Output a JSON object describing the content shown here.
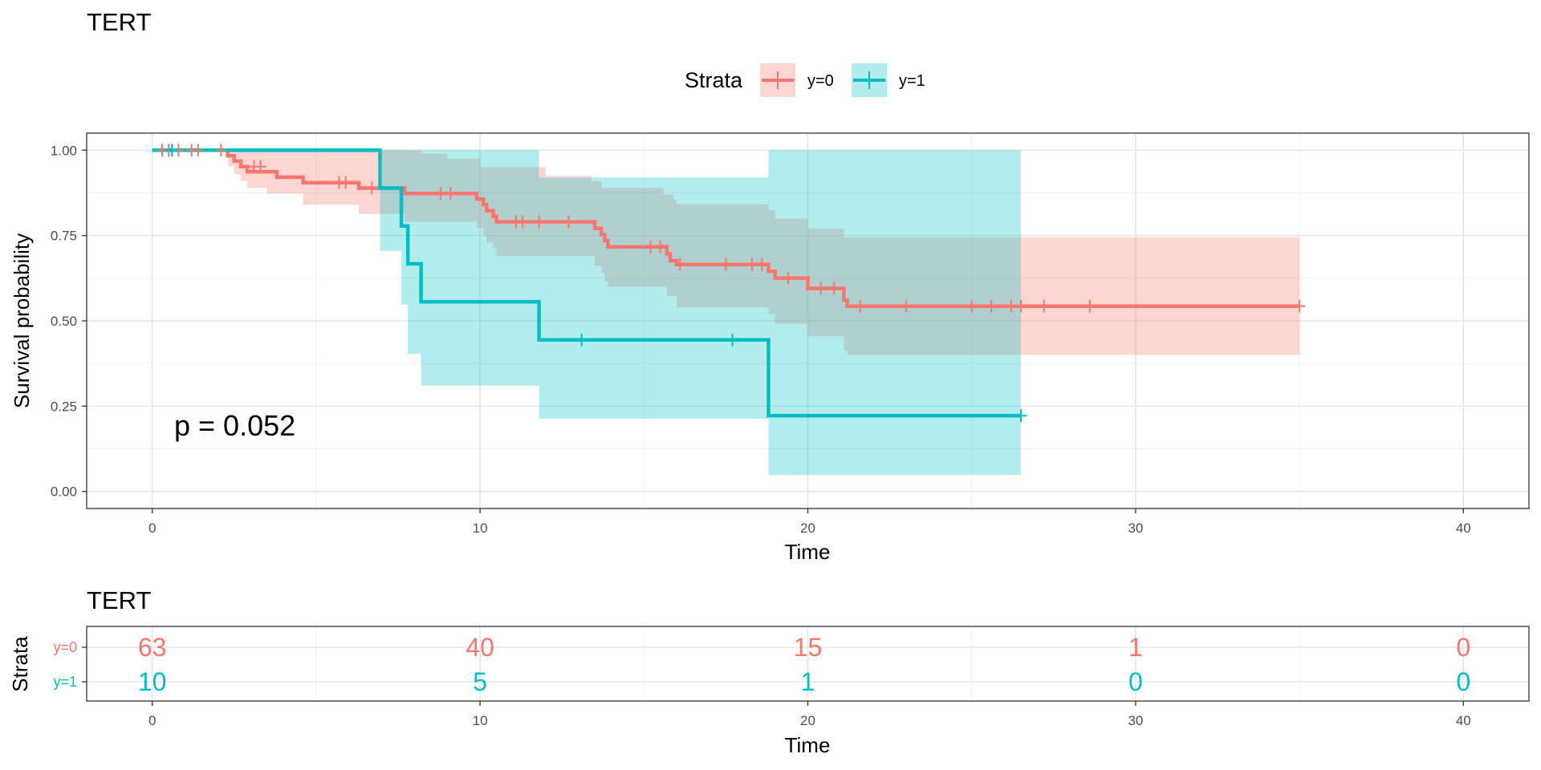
{
  "chart_data": [
    {
      "type": "line",
      "subtype": "kaplan-meier survival curve",
      "title": "TERT",
      "xlabel": "Time",
      "ylabel": "Survival probability",
      "xlim": [
        -2,
        42
      ],
      "ylim": [
        -0.05,
        1.05
      ],
      "x_ticks": [
        0,
        10,
        20,
        30,
        40
      ],
      "x_tick_labels": [
        "0",
        "10",
        "20",
        "30",
        "40"
      ],
      "y_ticks": [
        0,
        0.25,
        0.5,
        0.75,
        1.0
      ],
      "y_tick_labels": [
        "0.00",
        "0.25",
        "0.50",
        "0.75",
        "1.00"
      ],
      "grid": true,
      "legend": {
        "title": "Strata",
        "position": "top"
      },
      "annotation": "p = 0.052",
      "series": [
        {
          "name": "y=0",
          "color": "#F8766D",
          "steps": [
            [
              0,
              1.0
            ],
            [
              2.3,
              0.984
            ],
            [
              2.5,
              0.968
            ],
            [
              2.7,
              0.952
            ],
            [
              2.9,
              0.937
            ],
            [
              3.8,
              0.921
            ],
            [
              4.6,
              0.905
            ],
            [
              6.3,
              0.889
            ],
            [
              7.7,
              0.873
            ],
            [
              9.9,
              0.857
            ],
            [
              10.1,
              0.84
            ],
            [
              10.2,
              0.823
            ],
            [
              10.4,
              0.806
            ],
            [
              10.5,
              0.79
            ],
            [
              13.5,
              0.771
            ],
            [
              13.7,
              0.753
            ],
            [
              13.8,
              0.735
            ],
            [
              13.9,
              0.717
            ],
            [
              15.7,
              0.696
            ],
            [
              15.8,
              0.676
            ],
            [
              16.0,
              0.665
            ],
            [
              18.8,
              0.645
            ],
            [
              19.0,
              0.625
            ],
            [
              20.0,
              0.595
            ],
            [
              21.1,
              0.56
            ],
            [
              21.2,
              0.543
            ],
            [
              35.0,
              0.543
            ]
          ],
          "lower": [
            [
              0,
              1.0
            ],
            [
              2.3,
              0.953
            ],
            [
              2.5,
              0.93
            ],
            [
              2.7,
              0.91
            ],
            [
              2.9,
              0.89
            ],
            [
              3.5,
              0.873
            ],
            [
              4.6,
              0.84
            ],
            [
              6.3,
              0.813
            ],
            [
              7.7,
              0.79
            ],
            [
              9.9,
              0.773
            ],
            [
              10.1,
              0.751
            ],
            [
              10.2,
              0.73
            ],
            [
              10.4,
              0.712
            ],
            [
              10.5,
              0.69
            ],
            [
              13.5,
              0.662
            ],
            [
              13.7,
              0.64
            ],
            [
              13.8,
              0.615
            ],
            [
              13.9,
              0.6
            ],
            [
              15.7,
              0.573
            ],
            [
              16.0,
              0.54
            ],
            [
              18.8,
              0.52
            ],
            [
              19.0,
              0.491
            ],
            [
              20.0,
              0.455
            ],
            [
              21.1,
              0.413
            ],
            [
              21.2,
              0.4
            ],
            [
              35.0,
              0.4
            ]
          ],
          "upper": [
            [
              0,
              1.0
            ],
            [
              6.9,
              1.0
            ],
            [
              7.7,
              1.0
            ],
            [
              8.2,
              0.99
            ],
            [
              9.0,
              0.975
            ],
            [
              10.0,
              0.95
            ],
            [
              12.0,
              0.925
            ],
            [
              13.4,
              0.91
            ],
            [
              13.7,
              0.89
            ],
            [
              15.6,
              0.87
            ],
            [
              15.9,
              0.855
            ],
            [
              16.0,
              0.842
            ],
            [
              18.8,
              0.825
            ],
            [
              19.0,
              0.8
            ],
            [
              20.0,
              0.77
            ],
            [
              21.1,
              0.745
            ],
            [
              35.0,
              0.745
            ]
          ],
          "censored": [
            [
              0.3,
              1.0
            ],
            [
              0.5,
              1.0
            ],
            [
              0.8,
              1.0
            ],
            [
              1.2,
              1.0
            ],
            [
              1.4,
              1.0
            ],
            [
              2.1,
              1.0
            ],
            [
              3.1,
              0.952
            ],
            [
              3.3,
              0.952
            ],
            [
              5.7,
              0.905
            ],
            [
              5.9,
              0.905
            ],
            [
              6.7,
              0.889
            ],
            [
              8.8,
              0.873
            ],
            [
              9.1,
              0.873
            ],
            [
              11.1,
              0.79
            ],
            [
              11.3,
              0.79
            ],
            [
              11.8,
              0.79
            ],
            [
              12.7,
              0.79
            ],
            [
              15.2,
              0.717
            ],
            [
              15.5,
              0.717
            ],
            [
              16.1,
              0.665
            ],
            [
              17.5,
              0.665
            ],
            [
              18.3,
              0.665
            ],
            [
              18.6,
              0.665
            ],
            [
              19.4,
              0.625
            ],
            [
              20.4,
              0.595
            ],
            [
              20.8,
              0.595
            ],
            [
              21.6,
              0.543
            ],
            [
              23.0,
              0.543
            ],
            [
              25.0,
              0.543
            ],
            [
              25.6,
              0.543
            ],
            [
              26.2,
              0.543
            ],
            [
              26.5,
              0.543
            ],
            [
              27.2,
              0.543
            ],
            [
              28.6,
              0.543
            ],
            [
              35.0,
              0.543
            ]
          ]
        },
        {
          "name": "y=1",
          "color": "#00BFC4",
          "steps": [
            [
              0,
              1.0
            ],
            [
              6.95,
              0.889
            ],
            [
              7.6,
              0.778
            ],
            [
              7.8,
              0.667
            ],
            [
              8.2,
              0.556
            ],
            [
              11.8,
              0.444
            ],
            [
              18.8,
              0.222
            ],
            [
              26.5,
              0.222
            ]
          ],
          "lower": [
            [
              0,
              1.0
            ],
            [
              6.95,
              0.705
            ],
            [
              7.6,
              0.548
            ],
            [
              7.8,
              0.403
            ],
            [
              8.2,
              0.31
            ],
            [
              11.8,
              0.213
            ],
            [
              18.8,
              0.048
            ],
            [
              26.5,
              0.048
            ]
          ],
          "upper": [
            [
              0,
              1.0
            ],
            [
              11.8,
              1.0
            ],
            [
              11.8,
              0.92
            ],
            [
              18.8,
              0.92
            ],
            [
              18.8,
              1.0
            ],
            [
              26.5,
              1.0
            ]
          ],
          "censored": [
            [
              0.6,
              1.0
            ],
            [
              13.1,
              0.444
            ],
            [
              17.7,
              0.444
            ],
            [
              26.5,
              0.222
            ]
          ]
        }
      ]
    },
    {
      "type": "table",
      "subtype": "number at risk",
      "title": "TERT",
      "xlabel": "Time",
      "ylabel": "Strata",
      "xlim": [
        -2,
        42
      ],
      "x_ticks": [
        0,
        10,
        20,
        30,
        40
      ],
      "x_tick_labels": [
        "0",
        "10",
        "20",
        "30",
        "40"
      ],
      "categories": [
        "0",
        "10",
        "20",
        "30",
        "40"
      ],
      "series": [
        {
          "name": "y=0",
          "color": "#F8766D",
          "values": [
            63,
            40,
            15,
            1,
            0
          ]
        },
        {
          "name": "y=1",
          "color": "#00BFC4",
          "values": [
            10,
            5,
            1,
            0,
            0
          ]
        }
      ]
    }
  ]
}
